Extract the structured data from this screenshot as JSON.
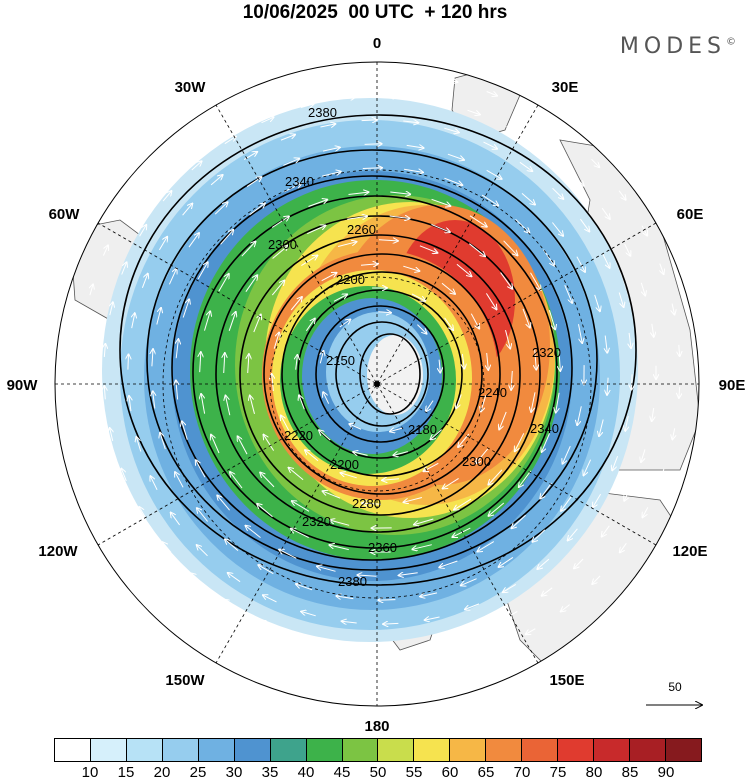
{
  "title": "10/06/2025  00 UTC  + 120 hrs",
  "brand": "MODES",
  "brand_mark": "©",
  "map": {
    "projection": "north-polar-stereographic",
    "shading": "wind speed",
    "contour_field": "geopotential height",
    "lon_labels": [
      "0",
      "30E",
      "60E",
      "90E",
      "120E",
      "150E",
      "180",
      "150W",
      "120W",
      "90W",
      "60W",
      "30W"
    ],
    "contour_labels": [
      "2380",
      "2360",
      "2340",
      "2320",
      "2300",
      "2280",
      "2260",
      "2240",
      "2220",
      "2200",
      "2180",
      "2150"
    ],
    "colors": {
      "land": "#efefef",
      "coast": "#555555",
      "contour": "#000000",
      "vector": "#ffffff"
    }
  },
  "ref_vector": {
    "label": "50"
  },
  "colorbar": {
    "levels": [
      "10",
      "15",
      "20",
      "25",
      "30",
      "35",
      "40",
      "45",
      "50",
      "55",
      "60",
      "65",
      "70",
      "75",
      "80",
      "85",
      "90"
    ],
    "colors": [
      "#ffffff",
      "#d6f0fb",
      "#b7e2f6",
      "#96cdee",
      "#6fb1e2",
      "#4f93d0",
      "#3ea38c",
      "#3db24a",
      "#7cc443",
      "#c9dd4c",
      "#f6e34f",
      "#f6b746",
      "#f18a3e",
      "#ea6436",
      "#e03b2f",
      "#c82a2b",
      "#a81f24",
      "#861a1e"
    ]
  }
}
